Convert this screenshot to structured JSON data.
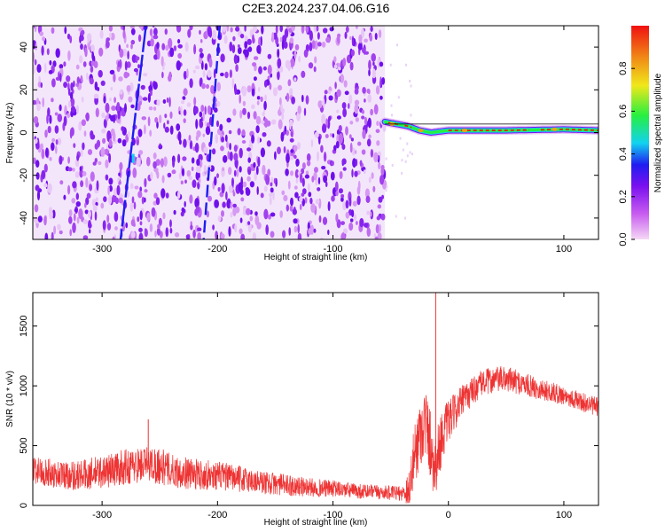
{
  "chart_data": [
    {
      "type": "heatmap",
      "title": "C2E3.2024.237.04.06.G16",
      "xlabel": "Height of straight line (km)",
      "ylabel": "Frequency (Hz)",
      "xlim": [
        -360,
        130
      ],
      "ylim": [
        -50,
        50
      ],
      "xticks": [
        -300,
        -200,
        -100,
        0,
        100
      ],
      "yticks": [
        -40,
        -20,
        0,
        20,
        40
      ],
      "colorbar": {
        "label": "Normalized spectral amplitude",
        "range": [
          0,
          1
        ],
        "ticks": [
          "0.0",
          "0.2",
          "0.4",
          "0.6",
          "0.8"
        ],
        "colors": [
          "#f5d8f5",
          "#c85cf0",
          "#7a10ef",
          "#1f1df0",
          "#12d2f0",
          "#26ef40",
          "#f0e81a",
          "#f08a16",
          "#f01010"
        ]
      },
      "regions": [
        {
          "label": "noise",
          "x_range": [
            -360,
            -55
          ],
          "y_range": [
            -50,
            50
          ],
          "amplitude": 0.15
        },
        {
          "label": "tone track",
          "x": [
            -55,
            -45,
            -35,
            -25,
            -15,
            0,
            50,
            100,
            130
          ],
          "y": [
            5,
            4,
            3,
            1,
            0,
            1,
            1,
            1.5,
            1
          ],
          "amplitude": 0.95
        }
      ],
      "stripes": [
        {
          "x_top": -262,
          "x_bottom": -284
        },
        {
          "x_top": -198,
          "x_bottom": -212
        }
      ]
    },
    {
      "type": "line",
      "title": "",
      "xlabel": "Height of straight line (km)",
      "ylabel": "SNR (10 * v/v)",
      "xlim": [
        -360,
        130
      ],
      "ylim": [
        0,
        1780
      ],
      "xticks": [
        -300,
        -200,
        -100,
        0,
        100
      ],
      "yticks": [
        0,
        500,
        1000,
        1500
      ],
      "color": "#ee3333",
      "series": [
        {
          "x": [
            -360,
            -340,
            -320,
            -300,
            -280,
            -260,
            -250,
            -240,
            -220,
            -200,
            -180,
            -160,
            -140,
            -120,
            -100,
            -80,
            -60,
            -40,
            -33,
            -30,
            -25,
            -20,
            -15,
            -12,
            -10,
            -5,
            0,
            10,
            20,
            30,
            40,
            50,
            60,
            80,
            100,
            120,
            130
          ],
          "y": [
            300,
            260,
            250,
            280,
            320,
            350,
            330,
            290,
            260,
            250,
            220,
            190,
            170,
            150,
            140,
            120,
            110,
            100,
            150,
            400,
            600,
            700,
            500,
            300,
            400,
            600,
            700,
            850,
            950,
            1030,
            1050,
            1060,
            1030,
            970,
            920,
            850,
            820
          ],
          "spread": [
            120,
            120,
            130,
            140,
            150,
            150,
            160,
            140,
            130,
            120,
            110,
            100,
            90,
            80,
            70,
            65,
            60,
            60,
            200,
            250,
            300,
            300,
            300,
            280,
            260,
            220,
            180,
            140,
            120,
            110,
            110,
            110,
            100,
            90,
            80,
            80,
            80
          ]
        }
      ],
      "spikes": [
        {
          "x": -11,
          "y": 1780
        },
        {
          "x": -260,
          "y": 720
        }
      ]
    }
  ]
}
